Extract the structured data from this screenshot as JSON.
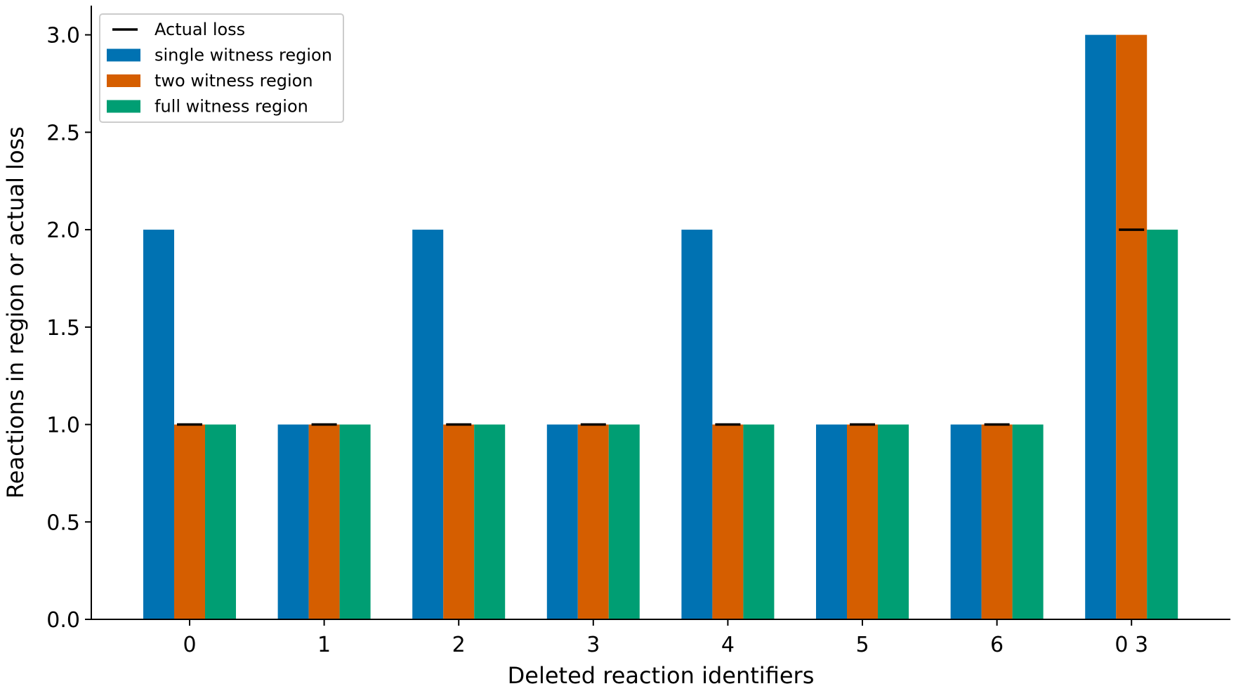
{
  "chart_data": {
    "type": "bar",
    "categories": [
      "0",
      "1",
      "2",
      "3",
      "4",
      "5",
      "6",
      "0 3"
    ],
    "series": [
      {
        "name": "single witness region",
        "values": [
          2,
          1,
          2,
          1,
          2,
          1,
          1,
          3
        ],
        "color": "#0072b2"
      },
      {
        "name": "two witness region",
        "values": [
          1,
          1,
          1,
          1,
          1,
          1,
          1,
          3
        ],
        "color": "#d55e00"
      },
      {
        "name": "full witness region",
        "values": [
          1,
          1,
          1,
          1,
          1,
          1,
          1,
          2
        ],
        "color": "#009e73"
      }
    ],
    "actual_loss": {
      "name": "Actual loss",
      "values": [
        1,
        1,
        1,
        1,
        1,
        1,
        1,
        2
      ],
      "color": "#000000"
    },
    "xlabel": "Deleted reaction identifiers",
    "ylabel": "Reactions in region or actual loss",
    "ylim": [
      0,
      3.15
    ],
    "yticks": [
      0.0,
      0.5,
      1.0,
      1.5,
      2.0,
      2.5,
      3.0
    ],
    "legend_position": "top-left",
    "grid": false
  }
}
